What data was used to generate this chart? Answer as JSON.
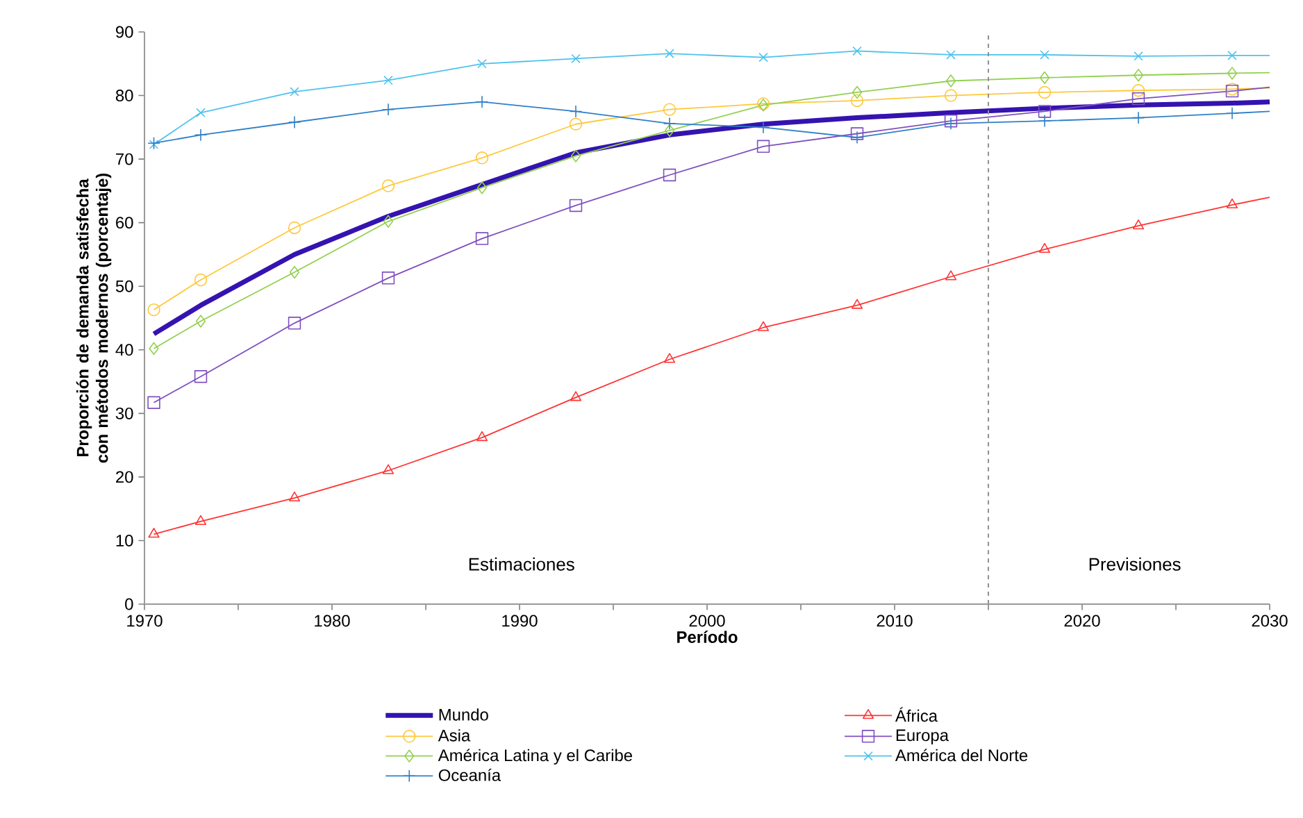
{
  "chart_data": {
    "type": "line",
    "xlabel": "Período",
    "ylabel": "Proporción de demanda satisfecha con métodos modernos (porcentaje)",
    "x": [
      1970.5,
      1973,
      1978,
      1983,
      1988,
      1993,
      1998,
      2003,
      2008,
      2013,
      2018,
      2023,
      2028,
      2030
    ],
    "series": [
      {
        "name": "Mundo",
        "color": "#3413b0",
        "marker": "none",
        "values": [
          42.5,
          47,
          55,
          61,
          66,
          71,
          73.8,
          75.5,
          76.5,
          77.3,
          78,
          78.5,
          78.8,
          79
        ]
      },
      {
        "name": "África",
        "color": "#ff3333",
        "marker": "triangle",
        "values": [
          11,
          13,
          16.7,
          21,
          26.2,
          32.5,
          38.5,
          43.5,
          47,
          51.5,
          55.8,
          59.5,
          62.8,
          64
        ]
      },
      {
        "name": "Asia",
        "color": "#ffc83c",
        "marker": "circle",
        "values": [
          46.3,
          51,
          59.2,
          65.8,
          70.2,
          75.5,
          77.8,
          78.7,
          79.2,
          80,
          80.5,
          80.8,
          81,
          81.2
        ]
      },
      {
        "name": "Europa",
        "color": "#7f4fbf",
        "marker": "square",
        "values": [
          31.7,
          35.8,
          44.2,
          51.3,
          57.5,
          62.7,
          67.5,
          72,
          74,
          76,
          77.5,
          79.5,
          80.7,
          81.3
        ]
      },
      {
        "name": "América Latina y el Caribe",
        "color": "#92d050",
        "marker": "diamond",
        "values": [
          40.2,
          44.5,
          52.2,
          60.2,
          65.5,
          70.5,
          74.5,
          78.5,
          80.5,
          82.3,
          82.8,
          83.2,
          83.5,
          83.6
        ]
      },
      {
        "name": "América del Norte",
        "color": "#4ec2ee",
        "marker": "cross",
        "values": [
          72.3,
          77.3,
          80.6,
          82.4,
          85,
          85.8,
          86.6,
          86,
          87,
          86.4,
          86.4,
          86.2,
          86.3,
          86.3
        ]
      },
      {
        "name": "Oceanía",
        "color": "#2f7fc8",
        "marker": "plus",
        "values": [
          72.5,
          73.8,
          75.8,
          77.8,
          79,
          77.5,
          75.6,
          75,
          73.4,
          75.6,
          76,
          76.5,
          77.2,
          77.5
        ]
      }
    ],
    "xlim": [
      1970,
      2030
    ],
    "xticks": [
      1970,
      {
        "value": 1975,
        "label": null
      },
      1980,
      {
        "value": 1985,
        "label": null
      },
      1990,
      {
        "value": 1995,
        "label": null
      },
      2000,
      {
        "value": 2005,
        "label": null
      },
      2010,
      {
        "value": 2015,
        "label": null
      },
      2020,
      {
        "value": 2025,
        "label": null
      },
      2030
    ],
    "ylim": [
      0,
      90
    ],
    "yticks": [
      0,
      10,
      20,
      30,
      40,
      50,
      60,
      70,
      80,
      90
    ],
    "ref_lines": [
      {
        "axis": "x",
        "value": 2015,
        "color": "#909090",
        "line_style": "dashed"
      }
    ],
    "annotations": [
      "Estimaciones",
      "Previsiones"
    ],
    "legend": "bottom",
    "grid": false,
    "line_style": "solid"
  }
}
